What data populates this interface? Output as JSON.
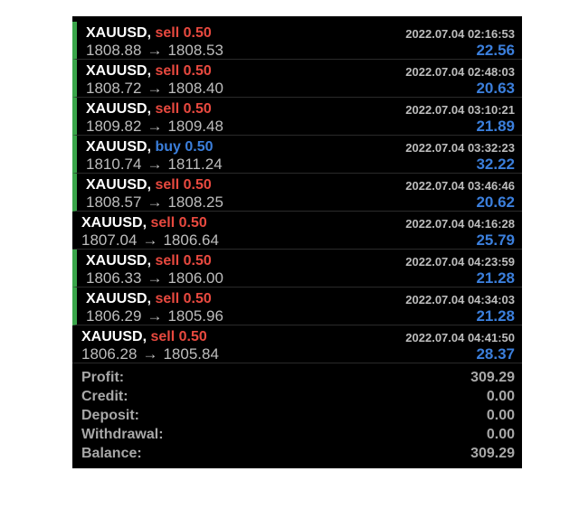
{
  "colors": {
    "sell": "#e8493f",
    "buy": "#3b7fdc",
    "profit": "#3b7fdc",
    "indicator": "#3aa64a",
    "background": "#000000"
  },
  "trades": [
    {
      "symbol": "XAUUSD,",
      "side": "sell 0.50",
      "side_type": "sell",
      "open": "1808.88",
      "arrow": "→",
      "close": "1808.53",
      "time": "2022.07.04 02:16:53",
      "profit": "22.56",
      "indicator": true
    },
    {
      "symbol": "XAUUSD,",
      "side": "sell 0.50",
      "side_type": "sell",
      "open": "1808.72",
      "arrow": "→",
      "close": "1808.40",
      "time": "2022.07.04 02:48:03",
      "profit": "20.63",
      "indicator": true
    },
    {
      "symbol": "XAUUSD,",
      "side": "sell 0.50",
      "side_type": "sell",
      "open": "1809.82",
      "arrow": "→",
      "close": "1809.48",
      "time": "2022.07.04 03:10:21",
      "profit": "21.89",
      "indicator": true
    },
    {
      "symbol": "XAUUSD,",
      "side": "buy 0.50",
      "side_type": "buy",
      "open": "1810.74",
      "arrow": "→",
      "close": "1811.24",
      "time": "2022.07.04 03:32:23",
      "profit": "32.22",
      "indicator": true
    },
    {
      "symbol": "XAUUSD,",
      "side": "sell 0.50",
      "side_type": "sell",
      "open": "1808.57",
      "arrow": "→",
      "close": "1808.25",
      "time": "2022.07.04 03:46:46",
      "profit": "20.62",
      "indicator": true
    },
    {
      "symbol": "XAUUSD,",
      "side": "sell 0.50",
      "side_type": "sell",
      "open": "1807.04",
      "arrow": "→",
      "close": "1806.64",
      "time": "2022.07.04 04:16:28",
      "profit": "25.79",
      "indicator": false
    },
    {
      "symbol": "XAUUSD,",
      "side": "sell 0.50",
      "side_type": "sell",
      "open": "1806.33",
      "arrow": "→",
      "close": "1806.00",
      "time": "2022.07.04 04:23:59",
      "profit": "21.28",
      "indicator": true
    },
    {
      "symbol": "XAUUSD,",
      "side": "sell 0.50",
      "side_type": "sell",
      "open": "1806.29",
      "arrow": "→",
      "close": "1805.96",
      "time": "2022.07.04 04:34:03",
      "profit": "21.28",
      "indicator": true
    },
    {
      "symbol": "XAUUSD,",
      "side": "sell 0.50",
      "side_type": "sell",
      "open": "1806.28",
      "arrow": "→",
      "close": "1805.84",
      "time": "2022.07.04 04:41:50",
      "profit": "28.37",
      "indicator": false
    }
  ],
  "summary": {
    "profit_label": "Profit:",
    "profit_value": "309.29",
    "credit_label": "Credit:",
    "credit_value": "0.00",
    "deposit_label": "Deposit:",
    "deposit_value": "0.00",
    "withdrawal_label": "Withdrawal:",
    "withdrawal_value": "0.00",
    "balance_label": "Balance:",
    "balance_value": "309.29"
  }
}
